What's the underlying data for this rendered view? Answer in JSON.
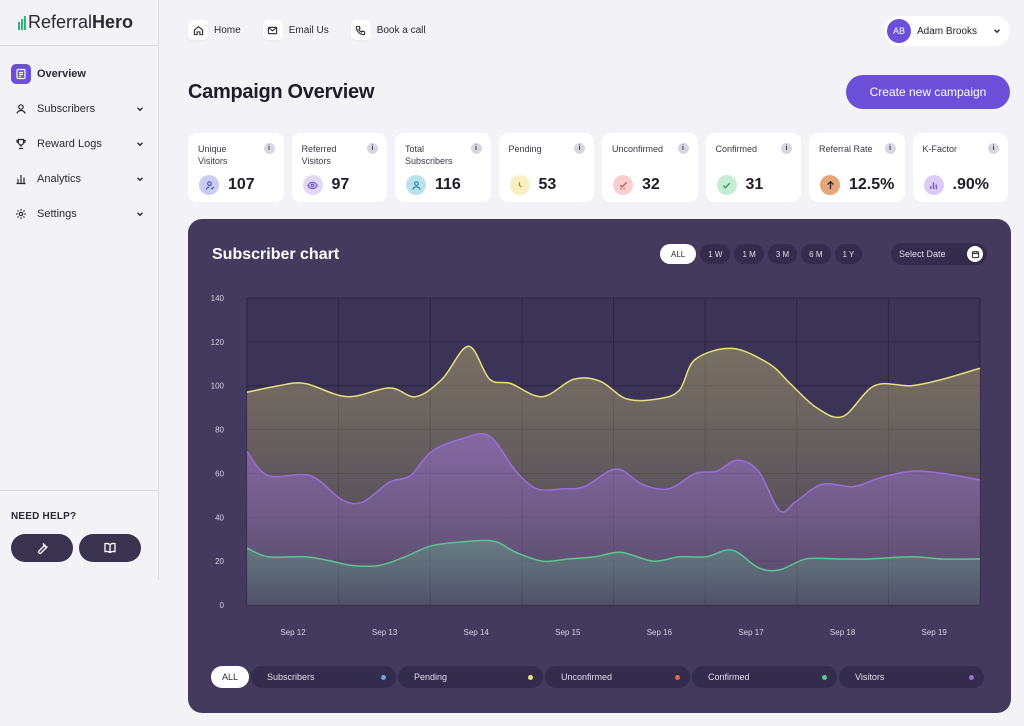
{
  "brand": {
    "name_light": "Referral",
    "name_bold": "Hero",
    "color": "#2bb673"
  },
  "sidebar": {
    "items": [
      {
        "label": "Overview",
        "icon": "file-icon",
        "active": true
      },
      {
        "label": "Subscribers",
        "icon": "user-icon"
      },
      {
        "label": "Reward Logs",
        "icon": "trophy-icon"
      },
      {
        "label": "Analytics",
        "icon": "bar-chart-icon"
      },
      {
        "label": "Settings",
        "icon": "gear-icon"
      }
    ],
    "help_title": "NEED HELP?"
  },
  "topnav": {
    "home": "Home",
    "email": "Email Us",
    "call": "Book a call"
  },
  "user": {
    "initials": "AB",
    "name": "Adam Brooks"
  },
  "page": {
    "title": "Campaign Overview",
    "create_label": "Create new campaign"
  },
  "stats": [
    {
      "label": "Unique Visitors",
      "value": "107",
      "icon_bg": "#c9cdf3",
      "icon_fg": "#4a55b8"
    },
    {
      "label": "Referred Visitors",
      "value": "97",
      "icon_bg": "#e2d8f6",
      "icon_fg": "#6b4fd8"
    },
    {
      "label": "Total Subscribers",
      "value": "116",
      "icon_bg": "#b9e2ec",
      "icon_fg": "#2e8aa3"
    },
    {
      "label": "Pending",
      "value": "53",
      "icon_bg": "#fbeec0",
      "icon_fg": "#a88614"
    },
    {
      "label": "Unconfirmed",
      "value": "32",
      "icon_bg": "#f7cfcf",
      "icon_fg": "#c0504d"
    },
    {
      "label": "Confirmed",
      "value": "31",
      "icon_bg": "#c7ecd4",
      "icon_fg": "#2b9a5a"
    },
    {
      "label": "Referral Rate",
      "value": "12.5%",
      "icon_bg": "#e6a67a",
      "icon_fg": "#2a2833"
    },
    {
      "label": "K-Factor",
      "value": ".90%",
      "icon_bg": "#dccbf4",
      "icon_fg": "#6b4fd8"
    }
  ],
  "stat_info_glyph": "i",
  "chart_card": {
    "title": "Subscriber chart",
    "ranges": [
      "ALL",
      "1 W",
      "1 M",
      "3 M",
      "6 M",
      "1 Y"
    ],
    "active_range": "ALL",
    "date_label": "Select Date"
  },
  "chart_data": {
    "type": "area",
    "x": [
      "Sep 12",
      "Sep 13",
      "Sep 14",
      "Sep 15",
      "Sep 16",
      "Sep 17",
      "Sep 18",
      "Sep 19"
    ],
    "ylim": [
      0,
      140
    ],
    "yticks": [
      0,
      20,
      40,
      60,
      80,
      100,
      120,
      140
    ],
    "grid": true,
    "series": [
      {
        "color": "#e8e07a",
        "points": [
          [
            0,
            97
          ],
          [
            0.3,
            100
          ],
          [
            0.55,
            101
          ],
          [
            0.95,
            95
          ],
          [
            1.35,
            99
          ],
          [
            1.6,
            95
          ],
          [
            1.85,
            103
          ],
          [
            2.1,
            118
          ],
          [
            2.3,
            103
          ],
          [
            2.5,
            101
          ],
          [
            2.8,
            95
          ],
          [
            3.1,
            103
          ],
          [
            3.35,
            102
          ],
          [
            3.6,
            94
          ],
          [
            3.9,
            94
          ],
          [
            4.1,
            98
          ],
          [
            4.25,
            112
          ],
          [
            4.6,
            117
          ],
          [
            4.95,
            110
          ],
          [
            5.15,
            101
          ],
          [
            5.4,
            90
          ],
          [
            5.65,
            86
          ],
          [
            5.95,
            100
          ],
          [
            6.3,
            100
          ],
          [
            6.6,
            103
          ],
          [
            6.95,
            108
          ]
        ]
      },
      {
        "color": "#9b6ddb",
        "points": [
          [
            0,
            70
          ],
          [
            0.2,
            59
          ],
          [
            0.6,
            59
          ],
          [
            0.9,
            48
          ],
          [
            1.1,
            47
          ],
          [
            1.35,
            56
          ],
          [
            1.55,
            59
          ],
          [
            1.75,
            70
          ],
          [
            2.05,
            76
          ],
          [
            2.3,
            77
          ],
          [
            2.55,
            61
          ],
          [
            2.75,
            53
          ],
          [
            3.0,
            53
          ],
          [
            3.2,
            54
          ],
          [
            3.5,
            62
          ],
          [
            3.75,
            55
          ],
          [
            4.0,
            53
          ],
          [
            4.25,
            60
          ],
          [
            4.45,
            61
          ],
          [
            4.65,
            66
          ],
          [
            4.85,
            61
          ],
          [
            5.05,
            43
          ],
          [
            5.2,
            47
          ],
          [
            5.45,
            55
          ],
          [
            5.75,
            54
          ],
          [
            6.0,
            58
          ],
          [
            6.3,
            61
          ],
          [
            6.6,
            60
          ],
          [
            6.95,
            57
          ]
        ]
      },
      {
        "color": "#5fc48f",
        "points": [
          [
            0,
            26
          ],
          [
            0.2,
            22
          ],
          [
            0.55,
            22
          ],
          [
            0.8,
            20
          ],
          [
            1.0,
            18
          ],
          [
            1.25,
            18
          ],
          [
            1.5,
            22
          ],
          [
            1.75,
            27
          ],
          [
            2.1,
            29
          ],
          [
            2.35,
            29
          ],
          [
            2.55,
            24
          ],
          [
            2.8,
            20
          ],
          [
            3.05,
            21
          ],
          [
            3.3,
            22
          ],
          [
            3.55,
            24
          ],
          [
            3.85,
            20
          ],
          [
            4.1,
            22
          ],
          [
            4.35,
            22
          ],
          [
            4.6,
            25
          ],
          [
            4.85,
            17
          ],
          [
            5.05,
            16
          ],
          [
            5.3,
            21
          ],
          [
            5.6,
            21
          ],
          [
            5.9,
            21
          ],
          [
            6.3,
            22
          ],
          [
            6.6,
            21
          ],
          [
            6.95,
            21
          ]
        ]
      }
    ]
  },
  "legend": {
    "all": "ALL",
    "items": [
      {
        "label": "Subscribers",
        "color": "#5aa9e6"
      },
      {
        "label": "Pending",
        "color": "#e8e07a"
      },
      {
        "label": "Unconfirmed",
        "color": "#e06a4f"
      },
      {
        "label": "Confirmed",
        "color": "#5fc48f"
      },
      {
        "label": "Visitors",
        "color": "#9b6ddb"
      }
    ]
  }
}
